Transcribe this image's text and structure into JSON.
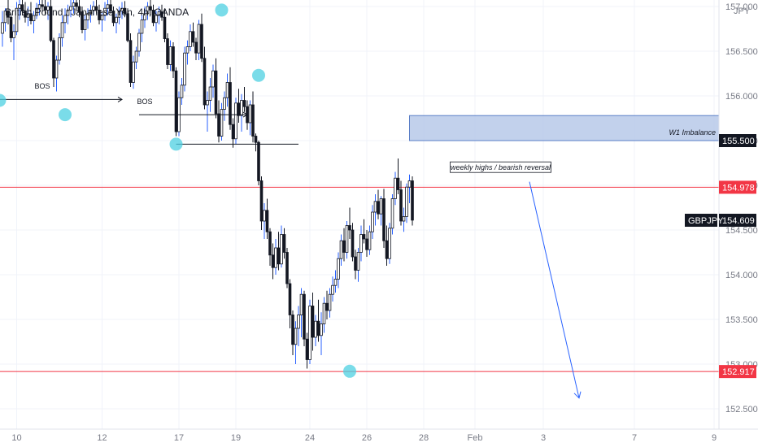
{
  "symbol_title": "British Pound / Japanese Yen, 4h, OANDA",
  "chart_data": {
    "type": "candlestick",
    "title": "British Pound / Japanese Yen, 4h, OANDA",
    "currency": "JPY",
    "ylim": [
      152.3,
      157.0
    ],
    "y_ticks": [
      "157.000",
      "156.500",
      "156.000",
      "155.500",
      "155.000",
      "154.500",
      "154.000",
      "153.500",
      "153.000",
      "152.500"
    ],
    "y_tick_values": [
      157.0,
      156.5,
      156.0,
      155.5,
      155.0,
      154.5,
      154.0,
      153.5,
      153.0,
      152.5
    ],
    "x_ticks": [
      "10",
      "12",
      "17",
      "19",
      "24",
      "26",
      "28",
      "Feb",
      "3",
      "7",
      "9"
    ],
    "x_tick_index": [
      5,
      35,
      62,
      82,
      108,
      128,
      148,
      166,
      190,
      222,
      250
    ],
    "price_labels": [
      {
        "id": "imbalance-low",
        "value": 155.5,
        "text": "155.500",
        "bg": "#131722"
      },
      {
        "id": "resistance",
        "value": 154.978,
        "text": "154.978",
        "bg": "#f23645"
      },
      {
        "id": "current",
        "value": 154.609,
        "text": "154.609",
        "bg": "#131722",
        "prefix": "GBPJPY"
      },
      {
        "id": "support",
        "value": 152.917,
        "text": "152.917",
        "bg": "#f23645"
      }
    ],
    "horizontal_lines": [
      {
        "value": 154.978,
        "color": "#f23645"
      },
      {
        "value": 152.917,
        "color": "#f23645"
      }
    ],
    "zone": {
      "label": "W1 Imbalance",
      "from": 155.5,
      "to": 155.78,
      "start_index": 143,
      "color": "#b7c9e9"
    },
    "annotations": [
      {
        "text": "BOS",
        "index": 14,
        "value": 156.08
      },
      {
        "text": "BOS",
        "index": 50,
        "value": 155.91
      },
      {
        "text": "weekly highs / bearish reversal",
        "index": 175,
        "value": 155.18
      }
    ],
    "candles": [
      [
        156.7,
        156.95,
        156.55,
        156.82
      ],
      [
        156.82,
        156.98,
        156.72,
        156.95
      ],
      [
        156.95,
        157.08,
        156.8,
        156.88
      ],
      [
        156.88,
        156.92,
        156.6,
        156.65
      ],
      [
        156.65,
        156.8,
        156.4,
        156.72
      ],
      [
        156.72,
        157.05,
        156.68,
        156.98
      ],
      [
        156.98,
        157.1,
        156.85,
        157.02
      ],
      [
        157.02,
        157.1,
        156.9,
        156.95
      ],
      [
        156.95,
        157.05,
        156.82,
        156.88
      ],
      [
        156.88,
        157.0,
        156.78,
        156.92
      ],
      [
        156.92,
        157.05,
        156.8,
        156.84
      ],
      [
        156.84,
        156.95,
        156.7,
        156.9
      ],
      [
        156.9,
        157.04,
        156.86,
        156.98
      ],
      [
        156.98,
        157.1,
        156.9,
        157.02
      ],
      [
        157.02,
        157.1,
        156.94,
        157.0
      ],
      [
        157.0,
        157.08,
        156.9,
        156.96
      ],
      [
        156.96,
        157.05,
        156.85,
        157.0
      ],
      [
        157.0,
        157.08,
        156.6,
        156.62
      ],
      [
        156.62,
        156.65,
        156.1,
        156.2
      ],
      [
        156.2,
        156.45,
        156.05,
        156.4
      ],
      [
        156.4,
        156.7,
        156.35,
        156.65
      ],
      [
        156.65,
        156.9,
        156.55,
        156.82
      ],
      [
        156.82,
        156.98,
        156.7,
        156.9
      ],
      [
        156.9,
        157.02,
        156.8,
        156.96
      ],
      [
        156.96,
        157.08,
        156.88,
        157.0
      ],
      [
        157.0,
        157.1,
        156.92,
        157.04
      ],
      [
        157.04,
        157.1,
        156.95,
        157.0
      ],
      [
        157.0,
        157.08,
        156.88,
        156.94
      ],
      [
        156.94,
        157.0,
        156.7,
        156.74
      ],
      [
        156.74,
        156.9,
        156.62,
        156.85
      ],
      [
        156.85,
        156.98,
        156.75,
        156.92
      ],
      [
        156.92,
        157.02,
        156.82,
        156.96
      ],
      [
        156.96,
        157.06,
        156.9,
        157.0
      ],
      [
        157.0,
        157.08,
        156.92,
        156.96
      ],
      [
        156.96,
        157.02,
        156.8,
        156.85
      ],
      [
        156.85,
        156.95,
        156.72,
        156.9
      ],
      [
        156.9,
        157.05,
        156.84,
        156.98
      ],
      [
        156.98,
        157.08,
        156.9,
        157.02
      ],
      [
        157.02,
        157.08,
        156.92,
        156.95
      ],
      [
        156.95,
        157.0,
        156.78,
        156.82
      ],
      [
        156.82,
        156.92,
        156.7,
        156.88
      ],
      [
        156.88,
        157.0,
        156.8,
        156.95
      ],
      [
        156.95,
        157.05,
        156.86,
        156.98
      ],
      [
        156.98,
        157.06,
        156.88,
        156.92
      ],
      [
        156.92,
        156.98,
        156.6,
        156.62
      ],
      [
        156.62,
        156.7,
        156.1,
        156.15
      ],
      [
        156.15,
        156.45,
        156.08,
        156.38
      ],
      [
        156.38,
        156.55,
        156.3,
        156.5
      ],
      [
        156.5,
        156.75,
        156.44,
        156.7
      ],
      [
        156.7,
        156.9,
        156.6,
        156.85
      ],
      [
        156.85,
        157.0,
        156.76,
        156.92
      ],
      [
        156.92,
        157.05,
        156.85,
        157.0
      ],
      [
        157.0,
        157.08,
        156.9,
        156.96
      ],
      [
        156.96,
        157.02,
        156.78,
        156.82
      ],
      [
        156.82,
        156.95,
        156.72,
        156.9
      ],
      [
        156.9,
        157.0,
        156.8,
        156.94
      ],
      [
        156.94,
        157.02,
        156.84,
        156.88
      ],
      [
        156.88,
        156.98,
        156.6,
        156.64
      ],
      [
        156.64,
        156.7,
        156.3,
        156.35
      ],
      [
        156.35,
        156.62,
        156.28,
        156.55
      ],
      [
        156.55,
        156.6,
        156.2,
        156.28
      ],
      [
        156.28,
        156.32,
        155.55,
        155.6
      ],
      [
        155.6,
        156.05,
        155.55,
        155.98
      ],
      [
        155.98,
        156.2,
        155.9,
        156.12
      ],
      [
        156.12,
        156.55,
        156.05,
        156.48
      ],
      [
        156.48,
        156.62,
        156.35,
        156.55
      ],
      [
        156.55,
        156.8,
        156.5,
        156.72
      ],
      [
        156.72,
        156.82,
        156.55,
        156.6
      ],
      [
        156.6,
        156.65,
        156.4,
        156.48
      ],
      [
        156.48,
        156.85,
        156.4,
        156.8
      ],
      [
        156.8,
        156.92,
        156.38,
        156.42
      ],
      [
        156.42,
        156.55,
        155.85,
        155.9
      ],
      [
        155.9,
        156.05,
        155.6,
        155.95
      ],
      [
        155.95,
        156.2,
        155.82,
        156.1
      ],
      [
        156.1,
        156.35,
        155.98,
        156.28
      ],
      [
        156.28,
        156.42,
        155.75,
        155.8
      ],
      [
        155.8,
        155.95,
        155.48,
        155.55
      ],
      [
        155.55,
        155.92,
        155.5,
        155.85
      ],
      [
        155.85,
        156.05,
        155.72,
        155.98
      ],
      [
        155.98,
        156.25,
        155.88,
        156.15
      ],
      [
        156.15,
        156.32,
        155.62,
        155.68
      ],
      [
        155.68,
        155.75,
        155.42,
        155.52
      ],
      [
        155.52,
        155.98,
        155.46,
        155.92
      ],
      [
        155.92,
        156.08,
        155.7,
        155.78
      ],
      [
        155.78,
        156.02,
        155.6,
        155.95
      ],
      [
        155.95,
        156.1,
        155.82,
        155.88
      ],
      [
        155.88,
        155.95,
        155.62,
        155.7
      ],
      [
        155.7,
        155.95,
        155.56,
        155.9
      ],
      [
        155.9,
        156.05,
        155.48,
        155.55
      ],
      [
        155.55,
        155.58,
        155.38,
        155.48
      ],
      [
        155.48,
        155.5,
        155.0,
        155.05
      ],
      [
        155.05,
        155.1,
        154.5,
        154.6
      ],
      [
        154.6,
        154.8,
        154.4,
        154.72
      ],
      [
        154.72,
        154.85,
        154.4,
        154.48
      ],
      [
        154.48,
        154.52,
        154.1,
        154.22
      ],
      [
        154.22,
        154.35,
        153.95,
        154.08
      ],
      [
        154.08,
        154.4,
        154.0,
        154.3
      ],
      [
        154.3,
        154.48,
        154.05,
        154.12
      ],
      [
        154.12,
        154.55,
        154.08,
        154.45
      ],
      [
        154.45,
        154.52,
        154.18,
        154.25
      ],
      [
        154.25,
        154.3,
        153.85,
        153.9
      ],
      [
        153.9,
        153.95,
        153.4,
        153.55
      ],
      [
        153.55,
        153.6,
        153.1,
        153.22
      ],
      [
        153.22,
        153.48,
        153.0,
        153.4
      ],
      [
        153.4,
        153.65,
        153.2,
        153.55
      ],
      [
        153.55,
        153.85,
        153.3,
        153.78
      ],
      [
        153.78,
        153.82,
        153.2,
        153.28
      ],
      [
        153.28,
        153.35,
        152.95,
        153.05
      ],
      [
        153.05,
        153.72,
        153.0,
        153.65
      ],
      [
        153.65,
        153.8,
        153.15,
        153.3
      ],
      [
        153.3,
        153.55,
        153.2,
        153.48
      ],
      [
        153.48,
        153.72,
        153.25,
        153.32
      ],
      [
        153.32,
        153.58,
        153.1,
        153.45
      ],
      [
        153.45,
        153.75,
        153.35,
        153.68
      ],
      [
        153.68,
        153.82,
        153.5,
        153.6
      ],
      [
        153.6,
        153.85,
        153.52,
        153.78
      ],
      [
        153.78,
        153.98,
        153.7,
        153.88
      ],
      [
        153.88,
        154.05,
        153.8,
        153.95
      ],
      [
        153.95,
        154.25,
        153.85,
        154.18
      ],
      [
        154.18,
        154.45,
        154.1,
        154.38
      ],
      [
        154.38,
        154.52,
        154.15,
        154.25
      ],
      [
        154.25,
        154.6,
        154.18,
        154.55
      ],
      [
        154.55,
        154.75,
        154.4,
        154.5
      ],
      [
        154.5,
        154.58,
        154.15,
        154.2
      ],
      [
        154.2,
        154.28,
        153.95,
        154.05
      ],
      [
        154.05,
        154.3,
        153.92,
        154.25
      ],
      [
        154.25,
        154.55,
        154.15,
        154.45
      ],
      [
        154.45,
        154.62,
        154.35,
        154.4
      ],
      [
        154.4,
        154.5,
        154.2,
        154.28
      ],
      [
        154.28,
        154.55,
        154.22,
        154.48
      ],
      [
        154.48,
        154.78,
        154.4,
        154.7
      ],
      [
        154.7,
        154.9,
        154.55,
        154.82
      ],
      [
        154.82,
        154.95,
        154.62,
        154.68
      ],
      [
        154.68,
        154.88,
        154.55,
        154.85
      ],
      [
        154.85,
        154.96,
        154.3,
        154.38
      ],
      [
        154.38,
        154.55,
        154.1,
        154.18
      ],
      [
        154.18,
        154.58,
        154.12,
        154.52
      ],
      [
        154.52,
        154.9,
        154.45,
        154.85
      ],
      [
        154.85,
        155.15,
        154.78,
        155.08
      ],
      [
        155.08,
        155.3,
        154.9,
        154.95
      ],
      [
        154.95,
        155.05,
        154.55,
        154.6
      ],
      [
        154.6,
        154.75,
        154.48,
        154.65
      ],
      [
        154.65,
        155.02,
        154.58,
        154.98
      ],
      [
        154.98,
        155.12,
        154.8,
        155.05
      ],
      [
        155.05,
        155.1,
        154.55,
        154.61
      ]
    ]
  }
}
